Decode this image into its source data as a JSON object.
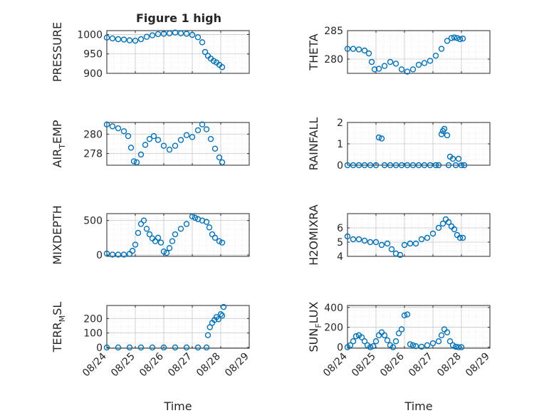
{
  "title": "Figure 1 high",
  "colors": {
    "marker": "#0072BD",
    "grid": "#dcdcdc",
    "axis": "#262626"
  },
  "x_ticks": [
    "08/24",
    "08/25",
    "08/26",
    "08/27",
    "08/28",
    "08/29"
  ],
  "x_label": "Time",
  "chart_data": [
    {
      "type": "scatter",
      "ylabel": "PRESSURE",
      "yticks": [
        900,
        950,
        1000
      ],
      "ylim": [
        900,
        1010
      ],
      "grid": true,
      "xlim": [
        24,
        29
      ],
      "x": [
        24.0,
        24.2,
        24.4,
        24.6,
        24.8,
        25.0,
        25.2,
        25.4,
        25.6,
        25.8,
        26.0,
        26.2,
        26.4,
        26.6,
        26.8,
        27.0,
        27.2,
        27.35,
        27.45,
        27.55,
        27.65,
        27.75,
        27.85,
        27.95,
        28.05
      ],
      "y": [
        992,
        990,
        988,
        987,
        985,
        984,
        988,
        994,
        998,
        1001,
        1002,
        1003,
        1005,
        1003,
        1002,
        999,
        993,
        980,
        955,
        945,
        938,
        932,
        928,
        922,
        916
      ]
    },
    {
      "type": "scatter",
      "ylabel": "THETA",
      "yticks": [
        280,
        285
      ],
      "ylim": [
        277.5,
        285
      ],
      "grid": true,
      "xlim": [
        24,
        29
      ],
      "x": [
        24.0,
        24.2,
        24.4,
        24.6,
        24.75,
        24.85,
        24.95,
        25.1,
        25.3,
        25.5,
        25.7,
        25.9,
        26.1,
        26.3,
        26.5,
        26.7,
        26.9,
        27.1,
        27.3,
        27.5,
        27.65,
        27.75,
        27.85,
        27.95,
        28.05
      ],
      "y": [
        281.8,
        281.8,
        281.7,
        281.5,
        281.0,
        279.5,
        278.2,
        278.3,
        278.8,
        279.5,
        279.2,
        278.2,
        277.8,
        278.2,
        279.0,
        279.3,
        279.7,
        280.6,
        281.8,
        283.2,
        283.7,
        283.8,
        283.7,
        283.5,
        283.6
      ]
    },
    {
      "type": "scatter",
      "ylabel": "AIR_TEMP",
      "yticks": [
        278,
        280
      ],
      "ylim": [
        276.8,
        281.2
      ],
      "grid": true,
      "xlim": [
        24,
        29
      ],
      "x": [
        24.0,
        24.2,
        24.4,
        24.6,
        24.75,
        24.85,
        24.95,
        25.05,
        25.2,
        25.35,
        25.5,
        25.65,
        25.8,
        26.0,
        26.2,
        26.4,
        26.6,
        26.8,
        27.0,
        27.2,
        27.35,
        27.5,
        27.65,
        27.8,
        27.95,
        28.05
      ],
      "y": [
        281.0,
        280.8,
        280.6,
        280.3,
        279.8,
        278.6,
        277.2,
        277.1,
        277.9,
        278.9,
        279.5,
        279.8,
        279.4,
        278.8,
        278.4,
        278.8,
        279.4,
        279.9,
        279.7,
        280.4,
        281.0,
        280.5,
        279.5,
        278.5,
        277.6,
        277.1
      ]
    },
    {
      "type": "scatter",
      "ylabel": "RAINFALL",
      "yticks": [
        0,
        1,
        2
      ],
      "ylim": [
        0,
        2
      ],
      "grid": true,
      "xlim": [
        24,
        29
      ],
      "x": [
        24.0,
        24.2,
        24.4,
        24.6,
        24.8,
        25.0,
        25.1,
        25.2,
        25.3,
        25.5,
        25.7,
        25.9,
        26.1,
        26.3,
        26.5,
        26.7,
        26.9,
        27.1,
        27.2,
        27.3,
        27.35,
        27.4,
        27.5,
        27.55,
        27.6,
        27.7,
        27.8,
        27.9,
        28.0,
        28.1
      ],
      "y": [
        0,
        0,
        0,
        0,
        0,
        0,
        1.3,
        1.25,
        0,
        0,
        0,
        0,
        0,
        0,
        0,
        0,
        0,
        0,
        0,
        1.45,
        1.6,
        1.7,
        1.4,
        0,
        0.4,
        0.3,
        0,
        0.3,
        0,
        0
      ]
    },
    {
      "type": "scatter",
      "ylabel": "MIXDEPTH",
      "yticks": [
        0,
        500
      ],
      "ylim": [
        -20,
        600
      ],
      "grid": true,
      "xlim": [
        24,
        29
      ],
      "x": [
        24.0,
        24.2,
        24.4,
        24.6,
        24.8,
        24.9,
        25.0,
        25.1,
        25.2,
        25.3,
        25.4,
        25.5,
        25.6,
        25.7,
        25.8,
        25.9,
        26.0,
        26.1,
        26.2,
        26.3,
        26.4,
        26.6,
        26.8,
        27.0,
        27.1,
        27.2,
        27.35,
        27.5,
        27.6,
        27.7,
        27.8,
        27.95,
        28.05
      ],
      "y": [
        20,
        5,
        5,
        5,
        15,
        60,
        150,
        320,
        450,
        500,
        380,
        300,
        240,
        200,
        250,
        180,
        50,
        30,
        100,
        200,
        300,
        380,
        450,
        560,
        540,
        520,
        500,
        480,
        400,
        300,
        250,
        200,
        180
      ]
    },
    {
      "type": "scatter",
      "ylabel": "H2OMIXRA",
      "yticks": [
        4,
        5,
        6
      ],
      "ylim": [
        4,
        7
      ],
      "grid": true,
      "xlim": [
        24,
        29
      ],
      "x": [
        24.0,
        24.2,
        24.4,
        24.6,
        24.8,
        25.0,
        25.2,
        25.4,
        25.55,
        25.7,
        25.85,
        26.0,
        26.2,
        26.4,
        26.6,
        26.8,
        27.0,
        27.2,
        27.35,
        27.45,
        27.55,
        27.65,
        27.75,
        27.85,
        27.95,
        28.05
      ],
      "y": [
        5.4,
        5.2,
        5.2,
        5.1,
        5.0,
        5.0,
        4.8,
        4.9,
        4.5,
        4.2,
        4.1,
        4.8,
        4.9,
        4.9,
        5.2,
        5.3,
        5.6,
        6.0,
        6.3,
        6.6,
        6.4,
        6.1,
        5.9,
        5.5,
        5.3,
        5.3
      ]
    },
    {
      "type": "scatter",
      "ylabel": "TERR_MSL",
      "yticks": [
        0,
        100,
        200
      ],
      "ylim": [
        -5,
        290
      ],
      "grid": true,
      "xlim": [
        24,
        29
      ],
      "x": [
        24.0,
        24.4,
        24.8,
        25.2,
        25.6,
        26.0,
        26.4,
        26.8,
        27.2,
        27.5,
        27.55,
        27.62,
        27.7,
        27.78,
        27.85,
        27.92,
        28.0,
        28.05,
        28.1
      ],
      "y": [
        0,
        0,
        0,
        0,
        0,
        0,
        0,
        0,
        0,
        0,
        85,
        140,
        170,
        190,
        210,
        195,
        230,
        220,
        280
      ]
    },
    {
      "type": "scatter",
      "ylabel": "SUN_FLUX",
      "yticks": [
        0,
        200,
        400
      ],
      "ylim": [
        -10,
        420
      ],
      "grid": true,
      "xlim": [
        24,
        29
      ],
      "x": [
        24.0,
        24.1,
        24.2,
        24.3,
        24.4,
        24.5,
        24.6,
        24.7,
        24.8,
        24.9,
        25.0,
        25.1,
        25.2,
        25.3,
        25.4,
        25.5,
        25.6,
        25.7,
        25.8,
        25.9,
        26.0,
        26.1,
        26.2,
        26.3,
        26.4,
        26.6,
        26.8,
        27.0,
        27.2,
        27.3,
        27.4,
        27.5,
        27.6,
        27.7,
        27.8,
        27.9,
        28.0
      ],
      "y": [
        0,
        20,
        60,
        110,
        120,
        100,
        60,
        20,
        0,
        10,
        60,
        120,
        150,
        120,
        70,
        20,
        0,
        60,
        140,
        180,
        320,
        330,
        30,
        20,
        10,
        5,
        20,
        40,
        60,
        120,
        180,
        150,
        60,
        20,
        5,
        0,
        0
      ]
    }
  ]
}
